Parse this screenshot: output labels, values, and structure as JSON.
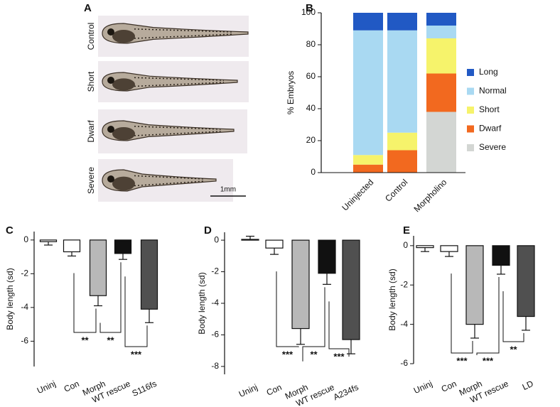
{
  "image_panel": {
    "panel_label": "A",
    "rows": [
      "Control",
      "Short",
      "Dwarf",
      "Severe"
    ],
    "scale_bar": "1mm"
  },
  "chart_data": [
    {
      "panel_label": "B",
      "type": "stacked_bar",
      "y_label": "% Embryos",
      "categories": [
        "Uninjected",
        "Control",
        "Morpholino"
      ],
      "series": [
        {
          "name": "Long",
          "color": "#2159c4",
          "values": [
            11,
            11,
            8
          ]
        },
        {
          "name": "Normal",
          "color": "#a9d9f2",
          "values": [
            78,
            64,
            8
          ]
        },
        {
          "name": "Short",
          "color": "#f6f36b",
          "values": [
            6,
            11,
            22
          ]
        },
        {
          "name": "Dwarf",
          "color": "#f2691f",
          "values": [
            5,
            14,
            24
          ]
        },
        {
          "name": "Severe",
          "color": "#d3d6d3",
          "values": [
            0,
            0,
            38
          ]
        }
      ],
      "ylim": [
        0,
        100
      ],
      "yticks": [
        0,
        20,
        40,
        60,
        80,
        100
      ],
      "legend": "right"
    },
    {
      "panel_label": "C",
      "type": "bar",
      "y_label": "Body length (sd)",
      "categories": [
        "Uninj",
        "Con",
        "Morph",
        "WT rescue",
        "S116fs"
      ],
      "values": [
        -0.1,
        -0.7,
        -3.3,
        -0.8,
        -4.1
      ],
      "errors": [
        0.2,
        0.25,
        0.6,
        0.35,
        0.8
      ],
      "colors": [
        "#ffffff",
        "#ffffff",
        "#b8b8b8",
        "#111111",
        "#505050"
      ],
      "ylim": [
        -7.5,
        0.5
      ],
      "yticks": [
        0,
        -2,
        -4,
        -6
      ],
      "significance": [
        "**",
        "**",
        "***"
      ]
    },
    {
      "panel_label": "D",
      "type": "bar",
      "y_label": "Body length (sd)",
      "categories": [
        "Uninj",
        "Con",
        "Morph",
        "WT rescue",
        "A234fs"
      ],
      "values": [
        0.05,
        -0.5,
        -5.6,
        -2.1,
        -6.3
      ],
      "errors": [
        0.2,
        0.4,
        1.0,
        0.7,
        0.9
      ],
      "colors": [
        "#ffffff",
        "#ffffff",
        "#b8b8b8",
        "#111111",
        "#505050"
      ],
      "ylim": [
        -8.5,
        0.5
      ],
      "yticks": [
        0,
        -2,
        -4,
        -6,
        -8
      ],
      "significance": [
        "***",
        "**",
        "***"
      ]
    },
    {
      "panel_label": "E",
      "type": "bar",
      "y_label": "Body length (sd)",
      "categories": [
        "Uninj",
        "Con",
        "Morph",
        "WT rescue",
        "LD"
      ],
      "values": [
        -0.1,
        -0.3,
        -4.0,
        -1.0,
        -3.6
      ],
      "errors": [
        0.2,
        0.25,
        0.7,
        0.45,
        0.7
      ],
      "colors": [
        "#ffffff",
        "#ffffff",
        "#b8b8b8",
        "#111111",
        "#505050"
      ],
      "ylim": [
        -6,
        0.5
      ],
      "yticks": [
        0,
        -2,
        -4,
        -6
      ],
      "significance": [
        "***",
        "***",
        "**"
      ]
    }
  ]
}
